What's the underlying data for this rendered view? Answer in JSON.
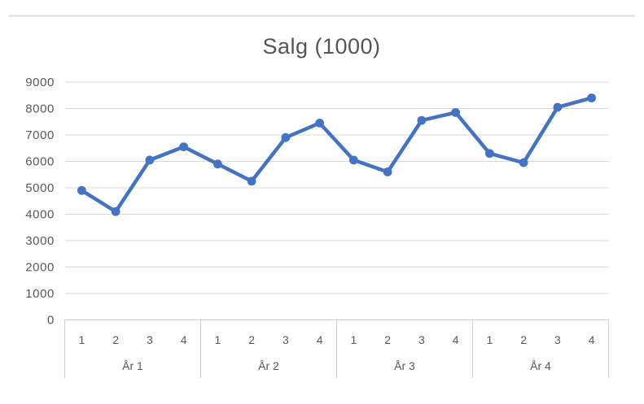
{
  "chart_data": {
    "type": "line",
    "title": "Salg (1000)",
    "series": [
      {
        "name": "Salg (1000)",
        "values": [
          4900,
          4100,
          6050,
          6550,
          5900,
          5250,
          6900,
          7450,
          6050,
          5600,
          7550,
          7850,
          6300,
          5950,
          8050,
          8400
        ]
      }
    ],
    "categories": [
      "1",
      "2",
      "3",
      "4",
      "1",
      "2",
      "3",
      "4",
      "1",
      "2",
      "3",
      "4",
      "1",
      "2",
      "3",
      "4"
    ],
    "group_labels": [
      "År 1",
      "År 2",
      "År 3",
      "År 4"
    ],
    "quarters_per_group": 4,
    "y_ticks": [
      0,
      1000,
      2000,
      3000,
      4000,
      5000,
      6000,
      7000,
      8000,
      9000
    ],
    "ylim": [
      0,
      9000
    ],
    "grid": true,
    "legend": "none",
    "marker": "circle",
    "colors": {
      "line": "#4472c4",
      "grid": "#d9d9d9",
      "axis": "#cfcfcf",
      "text": "#595959",
      "title": "#555555"
    }
  }
}
